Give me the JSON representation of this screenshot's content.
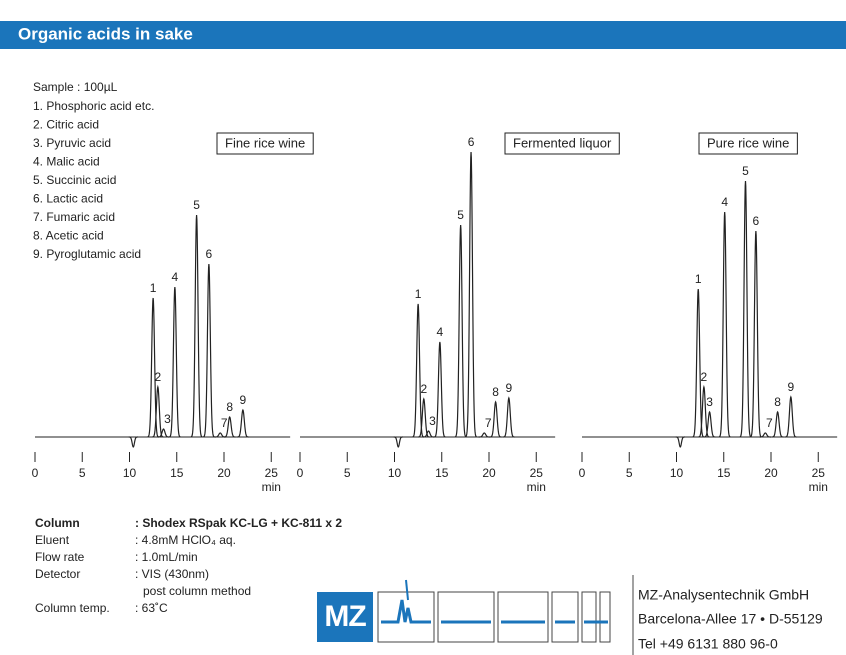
{
  "header": {
    "title": "Organic acids in sake"
  },
  "sample": {
    "title": "Sample : 100µL",
    "items": [
      "1. Phosphoric acid etc.",
      "2. Citric acid",
      "3. Pyruvic acid",
      "4. Malic acid",
      "5. Succinic acid",
      "6. Lactic acid",
      "7. Fumaric acid",
      "8. Acetic acid",
      "9. Pyroglutamic acid"
    ]
  },
  "chart_data": [
    {
      "type": "chromatogram",
      "title": "Fine rice wine",
      "color": "#222",
      "xlabel": "min",
      "categories": [
        null,
        "1",
        "2",
        "3",
        "4",
        "5",
        "6",
        "7",
        "8",
        "9"
      ],
      "x": [
        10.4,
        12.5,
        13.0,
        13.6,
        14.8,
        17.1,
        18.4,
        19.6,
        20.6,
        22.0
      ],
      "values": [
        -10,
        139,
        50,
        8,
        150,
        222,
        173,
        4,
        20,
        27
      ],
      "xlim": [
        0,
        27
      ],
      "ylim": [
        -20,
        300
      ],
      "xticks": [
        0,
        5,
        10,
        15,
        20,
        25
      ]
    },
    {
      "type": "chromatogram",
      "title": "Fermented liquor",
      "color": "#222",
      "xlabel": "min",
      "categories": [
        null,
        "1",
        "2",
        "3",
        "4",
        "5",
        "6",
        "7",
        "8",
        "9"
      ],
      "x": [
        10.4,
        12.5,
        13.1,
        13.6,
        14.8,
        17.0,
        18.1,
        19.5,
        20.7,
        22.1
      ],
      "values": [
        -10,
        133,
        38,
        6,
        95,
        212,
        285,
        4,
        35,
        39
      ],
      "xlim": [
        0,
        27
      ],
      "ylim": [
        -20,
        300
      ],
      "xticks": [
        0,
        5,
        10,
        15,
        20,
        25
      ]
    },
    {
      "type": "chromatogram",
      "title": "Pure rice wine",
      "color": "#222",
      "xlabel": "min",
      "categories": [
        null,
        "1",
        "2",
        "3",
        "4",
        "5",
        "6",
        "7",
        "8",
        "9"
      ],
      "x": [
        10.4,
        12.3,
        12.9,
        13.5,
        15.1,
        17.3,
        18.4,
        19.4,
        20.7,
        22.1
      ],
      "values": [
        -10,
        148,
        50,
        25,
        225,
        256,
        206,
        4,
        25,
        40
      ],
      "xlim": [
        0,
        27
      ],
      "ylim": [
        -20,
        300
      ],
      "xticks": [
        0,
        5,
        10,
        15,
        20,
        25
      ]
    }
  ],
  "conditions": [
    {
      "label": "Column",
      "value": ": Shodex RSpak KC-LG + KC-811 x 2"
    },
    {
      "label": "Eluent",
      "value": ": 4.8mM HClO₄ aq."
    },
    {
      "label": "Flow rate",
      "value": ": 1.0mL/min"
    },
    {
      "label": "Detector",
      "value": ": VIS (430nm)",
      "note": "post column method"
    },
    {
      "label": "Column temp.",
      "value": ": 63˚C"
    }
  ],
  "logo": {
    "text": "MZ"
  },
  "contact": {
    "company": "MZ-Analysentechnik GmbH",
    "address": "Barcelona-Allee 17 • D-55129",
    "phone": "Tel +49 6131 880 96-0"
  }
}
